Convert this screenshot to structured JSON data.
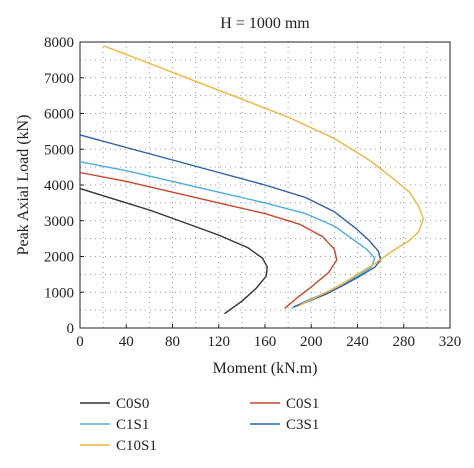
{
  "chart_data": {
    "type": "line",
    "title": "H = 1000 mm",
    "xlabel": "Moment (kN.m)",
    "ylabel": "Peak Axial Load (kN)",
    "xlim": [
      0,
      320
    ],
    "ylim": [
      0,
      8000
    ],
    "xticks": [
      0,
      40,
      80,
      120,
      160,
      200,
      240,
      280,
      320
    ],
    "yticks": [
      0,
      1000,
      2000,
      3000,
      4000,
      5000,
      6000,
      7000,
      8000
    ],
    "grid": "dotted",
    "legend_position": "bottom",
    "series": [
      {
        "name": "C0S0",
        "color": "#333333",
        "points": [
          [
            0,
            3900
          ],
          [
            30,
            3600
          ],
          [
            60,
            3300
          ],
          [
            90,
            2950
          ],
          [
            120,
            2600
          ],
          [
            145,
            2250
          ],
          [
            158,
            1950
          ],
          [
            162,
            1700
          ],
          [
            161,
            1450
          ],
          [
            152,
            1100
          ],
          [
            140,
            750
          ],
          [
            125,
            400
          ]
        ]
      },
      {
        "name": "C0S1",
        "color": "#c8462a",
        "points": [
          [
            0,
            4350
          ],
          [
            40,
            4100
          ],
          [
            80,
            3800
          ],
          [
            120,
            3500
          ],
          [
            160,
            3200
          ],
          [
            190,
            2900
          ],
          [
            210,
            2550
          ],
          [
            220,
            2200
          ],
          [
            222,
            1900
          ],
          [
            215,
            1550
          ],
          [
            200,
            1150
          ],
          [
            188,
            850
          ],
          [
            177,
            550
          ]
        ]
      },
      {
        "name": "C1S1",
        "color": "#4aaee0",
        "points": [
          [
            0,
            4650
          ],
          [
            40,
            4400
          ],
          [
            80,
            4100
          ],
          [
            120,
            3800
          ],
          [
            160,
            3500
          ],
          [
            195,
            3200
          ],
          [
            220,
            2850
          ],
          [
            235,
            2500
          ],
          [
            248,
            2200
          ],
          [
            255,
            1950
          ],
          [
            252,
            1700
          ],
          [
            240,
            1450
          ],
          [
            225,
            1200
          ],
          [
            210,
            950
          ],
          [
            195,
            750
          ],
          [
            183,
            550
          ]
        ]
      },
      {
        "name": "C3S1",
        "color": "#2b5ea8",
        "points": [
          [
            0,
            5400
          ],
          [
            40,
            5050
          ],
          [
            80,
            4700
          ],
          [
            120,
            4350
          ],
          [
            160,
            4000
          ],
          [
            195,
            3650
          ],
          [
            220,
            3250
          ],
          [
            238,
            2800
          ],
          [
            250,
            2450
          ],
          [
            258,
            2150
          ],
          [
            260,
            1900
          ],
          [
            255,
            1700
          ],
          [
            242,
            1450
          ],
          [
            228,
            1200
          ],
          [
            213,
            950
          ],
          [
            198,
            750
          ],
          [
            185,
            600
          ]
        ]
      },
      {
        "name": "C10S1",
        "color": "#f2b53a",
        "points": [
          [
            20,
            7900
          ],
          [
            60,
            7400
          ],
          [
            100,
            6900
          ],
          [
            140,
            6400
          ],
          [
            180,
            5900
          ],
          [
            220,
            5300
          ],
          [
            250,
            4700
          ],
          [
            270,
            4200
          ],
          [
            285,
            3800
          ],
          [
            293,
            3400
          ],
          [
            297,
            3050
          ],
          [
            293,
            2700
          ],
          [
            285,
            2450
          ],
          [
            270,
            2150
          ],
          [
            255,
            1800
          ],
          [
            240,
            1500
          ],
          [
            225,
            1200
          ],
          [
            210,
            950
          ],
          [
            197,
            750
          ],
          [
            188,
            600
          ]
        ]
      }
    ]
  }
}
